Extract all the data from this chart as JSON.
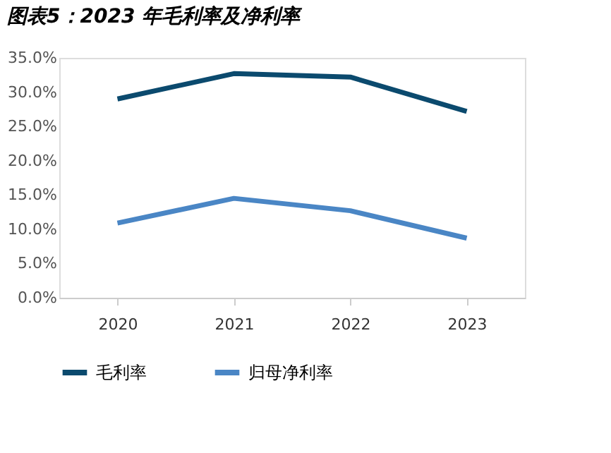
{
  "chart_data": {
    "type": "line",
    "title": "图表5：2023 年毛利率及净利率",
    "categories": [
      "2020",
      "2021",
      "2022",
      "2023"
    ],
    "series": [
      {
        "name": "毛利率",
        "color": "#0b4a6e",
        "values": [
          29.0,
          32.7,
          32.2,
          27.2
        ]
      },
      {
        "name": "归母净利率",
        "color": "#4a86c5",
        "values": [
          10.9,
          14.5,
          12.7,
          8.7
        ]
      }
    ],
    "ylim": [
      0,
      35
    ],
    "yticks": [
      {
        "value": 0,
        "label": "0.0%"
      },
      {
        "value": 5,
        "label": "5.0%"
      },
      {
        "value": 10,
        "label": "10.0%"
      },
      {
        "value": 15,
        "label": "15.0%"
      },
      {
        "value": 20,
        "label": "20.0%"
      },
      {
        "value": 25,
        "label": "25.0%"
      },
      {
        "value": 30,
        "label": "30.0%"
      },
      {
        "value": 35,
        "label": "35.0%"
      }
    ],
    "grid": false,
    "legend": "bottom",
    "marker": "none",
    "line_style": "solid"
  }
}
